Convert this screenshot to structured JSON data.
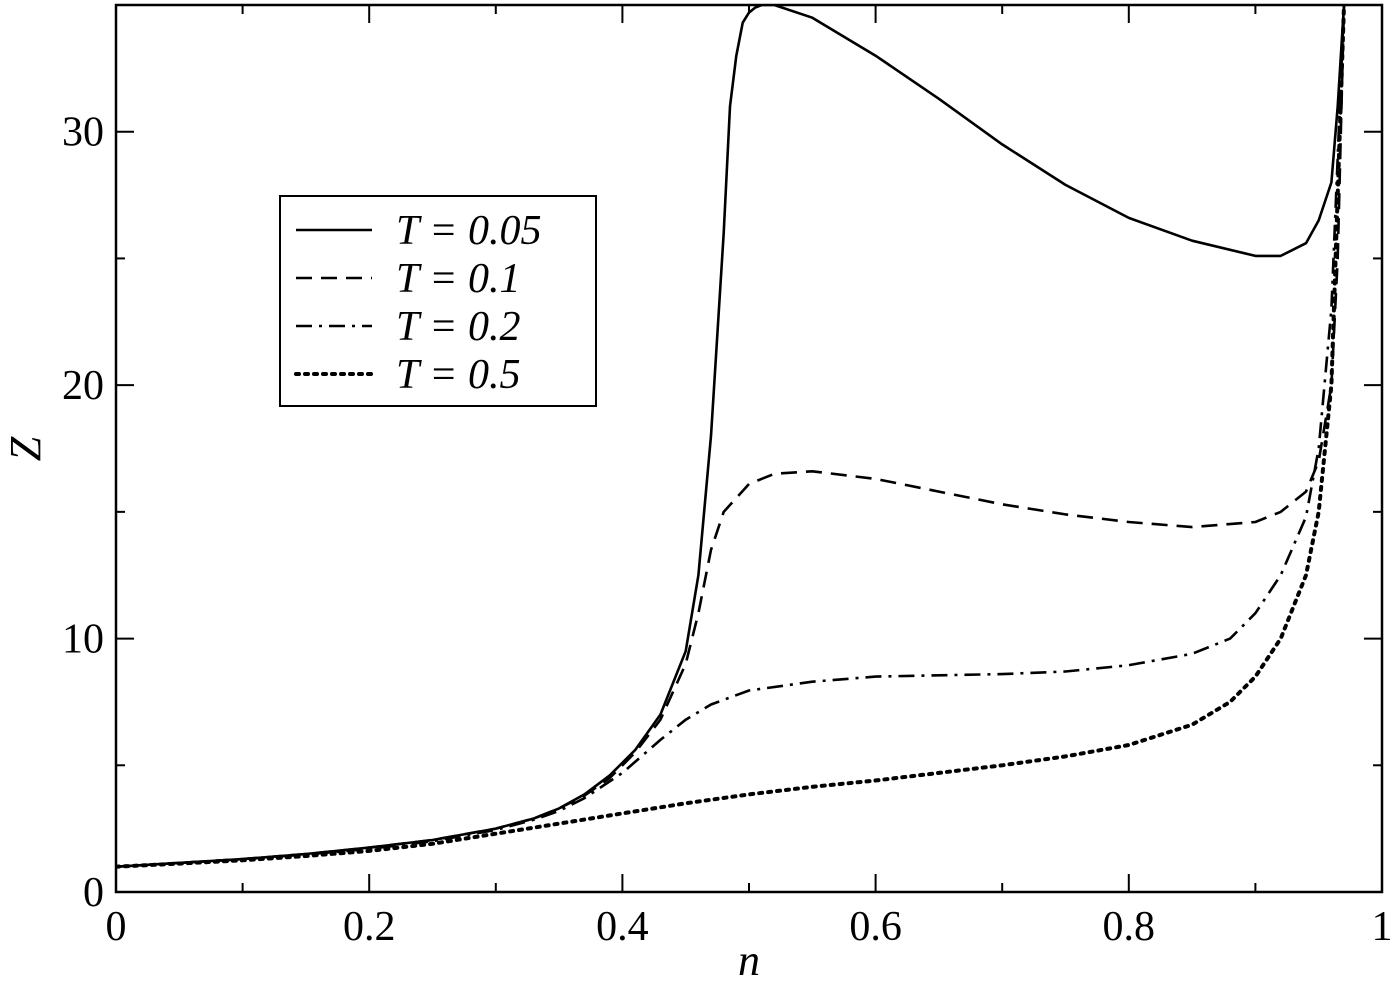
{
  "chart_data": {
    "type": "line",
    "title": "",
    "xlabel": "n",
    "ylabel": "Z",
    "xlim": [
      0,
      1
    ],
    "ylim": [
      0,
      35
    ],
    "x_ticks": [
      0,
      0.2,
      0.4,
      0.6,
      0.8,
      1
    ],
    "x_tick_labels": [
      "0",
      "0.2",
      "0.4",
      "0.6",
      "0.8",
      "1"
    ],
    "y_ticks": [
      0,
      10,
      20,
      30
    ],
    "y_tick_labels": [
      "0",
      "10",
      "20",
      "30"
    ],
    "grid": false,
    "legend_position": "upper-left",
    "series": [
      {
        "name": "T = 0.05",
        "style": "solid",
        "x": [
          0,
          0.05,
          0.1,
          0.15,
          0.2,
          0.25,
          0.3,
          0.33,
          0.35,
          0.37,
          0.39,
          0.41,
          0.43,
          0.45,
          0.46,
          0.47,
          0.48,
          0.485,
          0.49,
          0.495,
          0.5,
          0.505,
          0.51,
          0.52,
          0.55,
          0.6,
          0.65,
          0.7,
          0.75,
          0.8,
          0.85,
          0.9,
          0.92,
          0.94,
          0.95,
          0.96,
          0.965,
          0.97
        ],
        "y": [
          1.0,
          1.15,
          1.3,
          1.5,
          1.75,
          2.05,
          2.5,
          2.9,
          3.3,
          3.85,
          4.6,
          5.6,
          7.0,
          9.5,
          12.5,
          18.0,
          26.0,
          31.0,
          33.0,
          34.3,
          34.7,
          34.9,
          35.0,
          35.0,
          34.5,
          33.0,
          31.3,
          29.5,
          27.9,
          26.6,
          25.7,
          25.1,
          25.1,
          25.6,
          26.5,
          28.0,
          31.0,
          35.0
        ]
      },
      {
        "name": "T = 0.1",
        "style": "dashed",
        "x": [
          0,
          0.05,
          0.1,
          0.15,
          0.2,
          0.25,
          0.3,
          0.33,
          0.35,
          0.37,
          0.39,
          0.41,
          0.43,
          0.45,
          0.46,
          0.47,
          0.48,
          0.5,
          0.52,
          0.55,
          0.6,
          0.65,
          0.7,
          0.75,
          0.8,
          0.85,
          0.9,
          0.92,
          0.94,
          0.95,
          0.96,
          0.965,
          0.97
        ],
        "y": [
          1.0,
          1.15,
          1.3,
          1.5,
          1.75,
          2.05,
          2.5,
          2.9,
          3.3,
          3.8,
          4.5,
          5.5,
          6.8,
          9.0,
          11.0,
          13.5,
          15.0,
          16.1,
          16.5,
          16.6,
          16.3,
          15.8,
          15.3,
          14.9,
          14.6,
          14.4,
          14.6,
          15.0,
          15.8,
          17.0,
          20.0,
          25.0,
          35.0
        ]
      },
      {
        "name": "T = 0.2",
        "style": "dashdot",
        "x": [
          0,
          0.05,
          0.1,
          0.15,
          0.2,
          0.25,
          0.3,
          0.33,
          0.35,
          0.37,
          0.4,
          0.43,
          0.45,
          0.47,
          0.5,
          0.55,
          0.6,
          0.65,
          0.7,
          0.75,
          0.8,
          0.85,
          0.88,
          0.9,
          0.92,
          0.94,
          0.95,
          0.96,
          0.97
        ],
        "y": [
          1.0,
          1.15,
          1.3,
          1.48,
          1.7,
          2.0,
          2.45,
          2.85,
          3.2,
          3.7,
          4.7,
          6.0,
          6.8,
          7.4,
          7.95,
          8.3,
          8.5,
          8.55,
          8.6,
          8.7,
          8.95,
          9.4,
          10.0,
          11.0,
          12.5,
          14.8,
          17.5,
          23.0,
          35.0
        ]
      },
      {
        "name": "T = 0.5",
        "style": "dotted",
        "x": [
          0,
          0.05,
          0.1,
          0.15,
          0.2,
          0.25,
          0.3,
          0.35,
          0.4,
          0.45,
          0.5,
          0.55,
          0.6,
          0.65,
          0.7,
          0.75,
          0.8,
          0.85,
          0.88,
          0.9,
          0.92,
          0.94,
          0.95,
          0.96,
          0.97
        ],
        "y": [
          1.0,
          1.12,
          1.25,
          1.42,
          1.62,
          1.9,
          2.3,
          2.7,
          3.1,
          3.5,
          3.85,
          4.15,
          4.4,
          4.7,
          5.0,
          5.35,
          5.8,
          6.6,
          7.5,
          8.5,
          10.0,
          12.5,
          15.0,
          20.0,
          35.0
        ]
      }
    ]
  }
}
